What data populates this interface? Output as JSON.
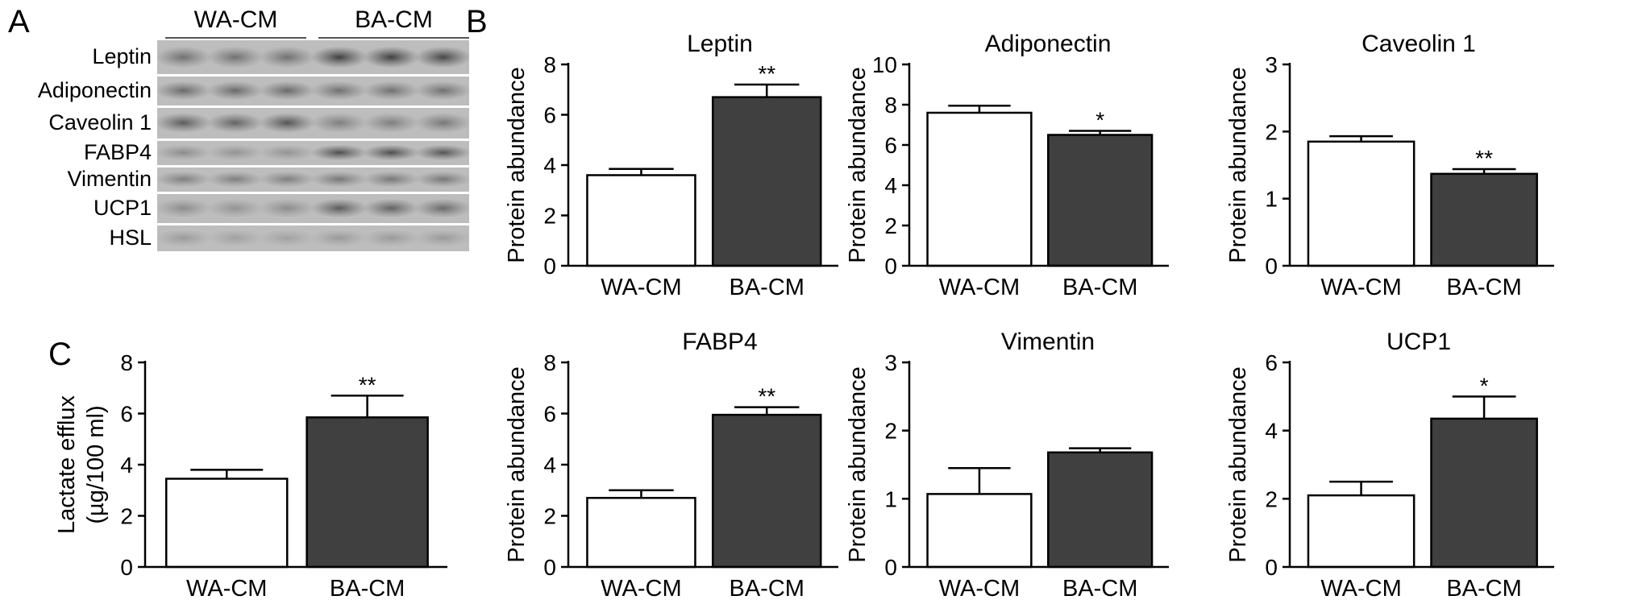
{
  "panels": {
    "a": "A",
    "b": "B",
    "c": "C"
  },
  "blot": {
    "groups": [
      "WA-CM",
      "BA-CM"
    ],
    "rows": [
      "Leptin",
      "Adiponectin",
      "Caveolin 1",
      "FABP4",
      "Vimentin",
      "UCP1",
      "HSL"
    ]
  },
  "chart_data": [
    {
      "type": "bar",
      "title": "Leptin",
      "categories": [
        "WA-CM",
        "BA-CM"
      ],
      "values": [
        3.6,
        6.7
      ],
      "errors": [
        0.25,
        0.5
      ],
      "significance": [
        "",
        "**"
      ],
      "ylabel": "Protein abundance",
      "ylim": [
        0,
        8
      ],
      "yticks": [
        0,
        2,
        4,
        6,
        8
      ],
      "colors": [
        "#ffffff",
        "#404040"
      ]
    },
    {
      "type": "bar",
      "title": "Adiponectin",
      "categories": [
        "WA-CM",
        "BA-CM"
      ],
      "values": [
        7.6,
        6.5
      ],
      "errors": [
        0.35,
        0.2
      ],
      "significance": [
        "",
        "*"
      ],
      "ylabel": "Protein abundance",
      "ylim": [
        0,
        10
      ],
      "yticks": [
        0,
        2,
        4,
        6,
        8,
        10
      ],
      "colors": [
        "#ffffff",
        "#404040"
      ]
    },
    {
      "type": "bar",
      "title": "Caveolin 1",
      "categories": [
        "WA-CM",
        "BA-CM"
      ],
      "values": [
        1.85,
        1.37
      ],
      "errors": [
        0.08,
        0.07
      ],
      "significance": [
        "",
        "**"
      ],
      "ylabel": "Protein abundance",
      "ylim": [
        0,
        3
      ],
      "yticks": [
        0,
        1,
        2,
        3
      ],
      "colors": [
        "#ffffff",
        "#404040"
      ]
    },
    {
      "type": "bar",
      "title": "",
      "categories": [
        "WA-CM",
        "BA-CM"
      ],
      "values": [
        3.45,
        5.85
      ],
      "errors": [
        0.35,
        0.85
      ],
      "significance": [
        "",
        "**"
      ],
      "ylabel": "Lactate efflux",
      "ylabel2": "(µg/100 ml)",
      "ylim": [
        0,
        8
      ],
      "yticks": [
        0,
        2,
        4,
        6,
        8
      ],
      "colors": [
        "#ffffff",
        "#404040"
      ]
    },
    {
      "type": "bar",
      "title": "FABP4",
      "categories": [
        "WA-CM",
        "BA-CM"
      ],
      "values": [
        2.7,
        5.95
      ],
      "errors": [
        0.3,
        0.3
      ],
      "significance": [
        "",
        "**"
      ],
      "ylabel": "Protein abundance",
      "ylim": [
        0,
        8
      ],
      "yticks": [
        0,
        2,
        4,
        6,
        8
      ],
      "colors": [
        "#ffffff",
        "#404040"
      ]
    },
    {
      "type": "bar",
      "title": "Vimentin",
      "categories": [
        "WA-CM",
        "BA-CM"
      ],
      "values": [
        1.07,
        1.68
      ],
      "errors": [
        0.38,
        0.06
      ],
      "significance": [
        "",
        ""
      ],
      "ylabel": "Protein abundance",
      "ylim": [
        0,
        3
      ],
      "yticks": [
        0,
        1,
        2,
        3
      ],
      "colors": [
        "#ffffff",
        "#404040"
      ]
    },
    {
      "type": "bar",
      "title": "UCP1",
      "categories": [
        "WA-CM",
        "BA-CM"
      ],
      "values": [
        2.1,
        4.35
      ],
      "errors": [
        0.4,
        0.65
      ],
      "significance": [
        "",
        "*"
      ],
      "ylabel": "Protein abundance",
      "ylim": [
        0,
        6
      ],
      "yticks": [
        0,
        2,
        4,
        6
      ],
      "colors": [
        "#ffffff",
        "#404040"
      ]
    }
  ]
}
